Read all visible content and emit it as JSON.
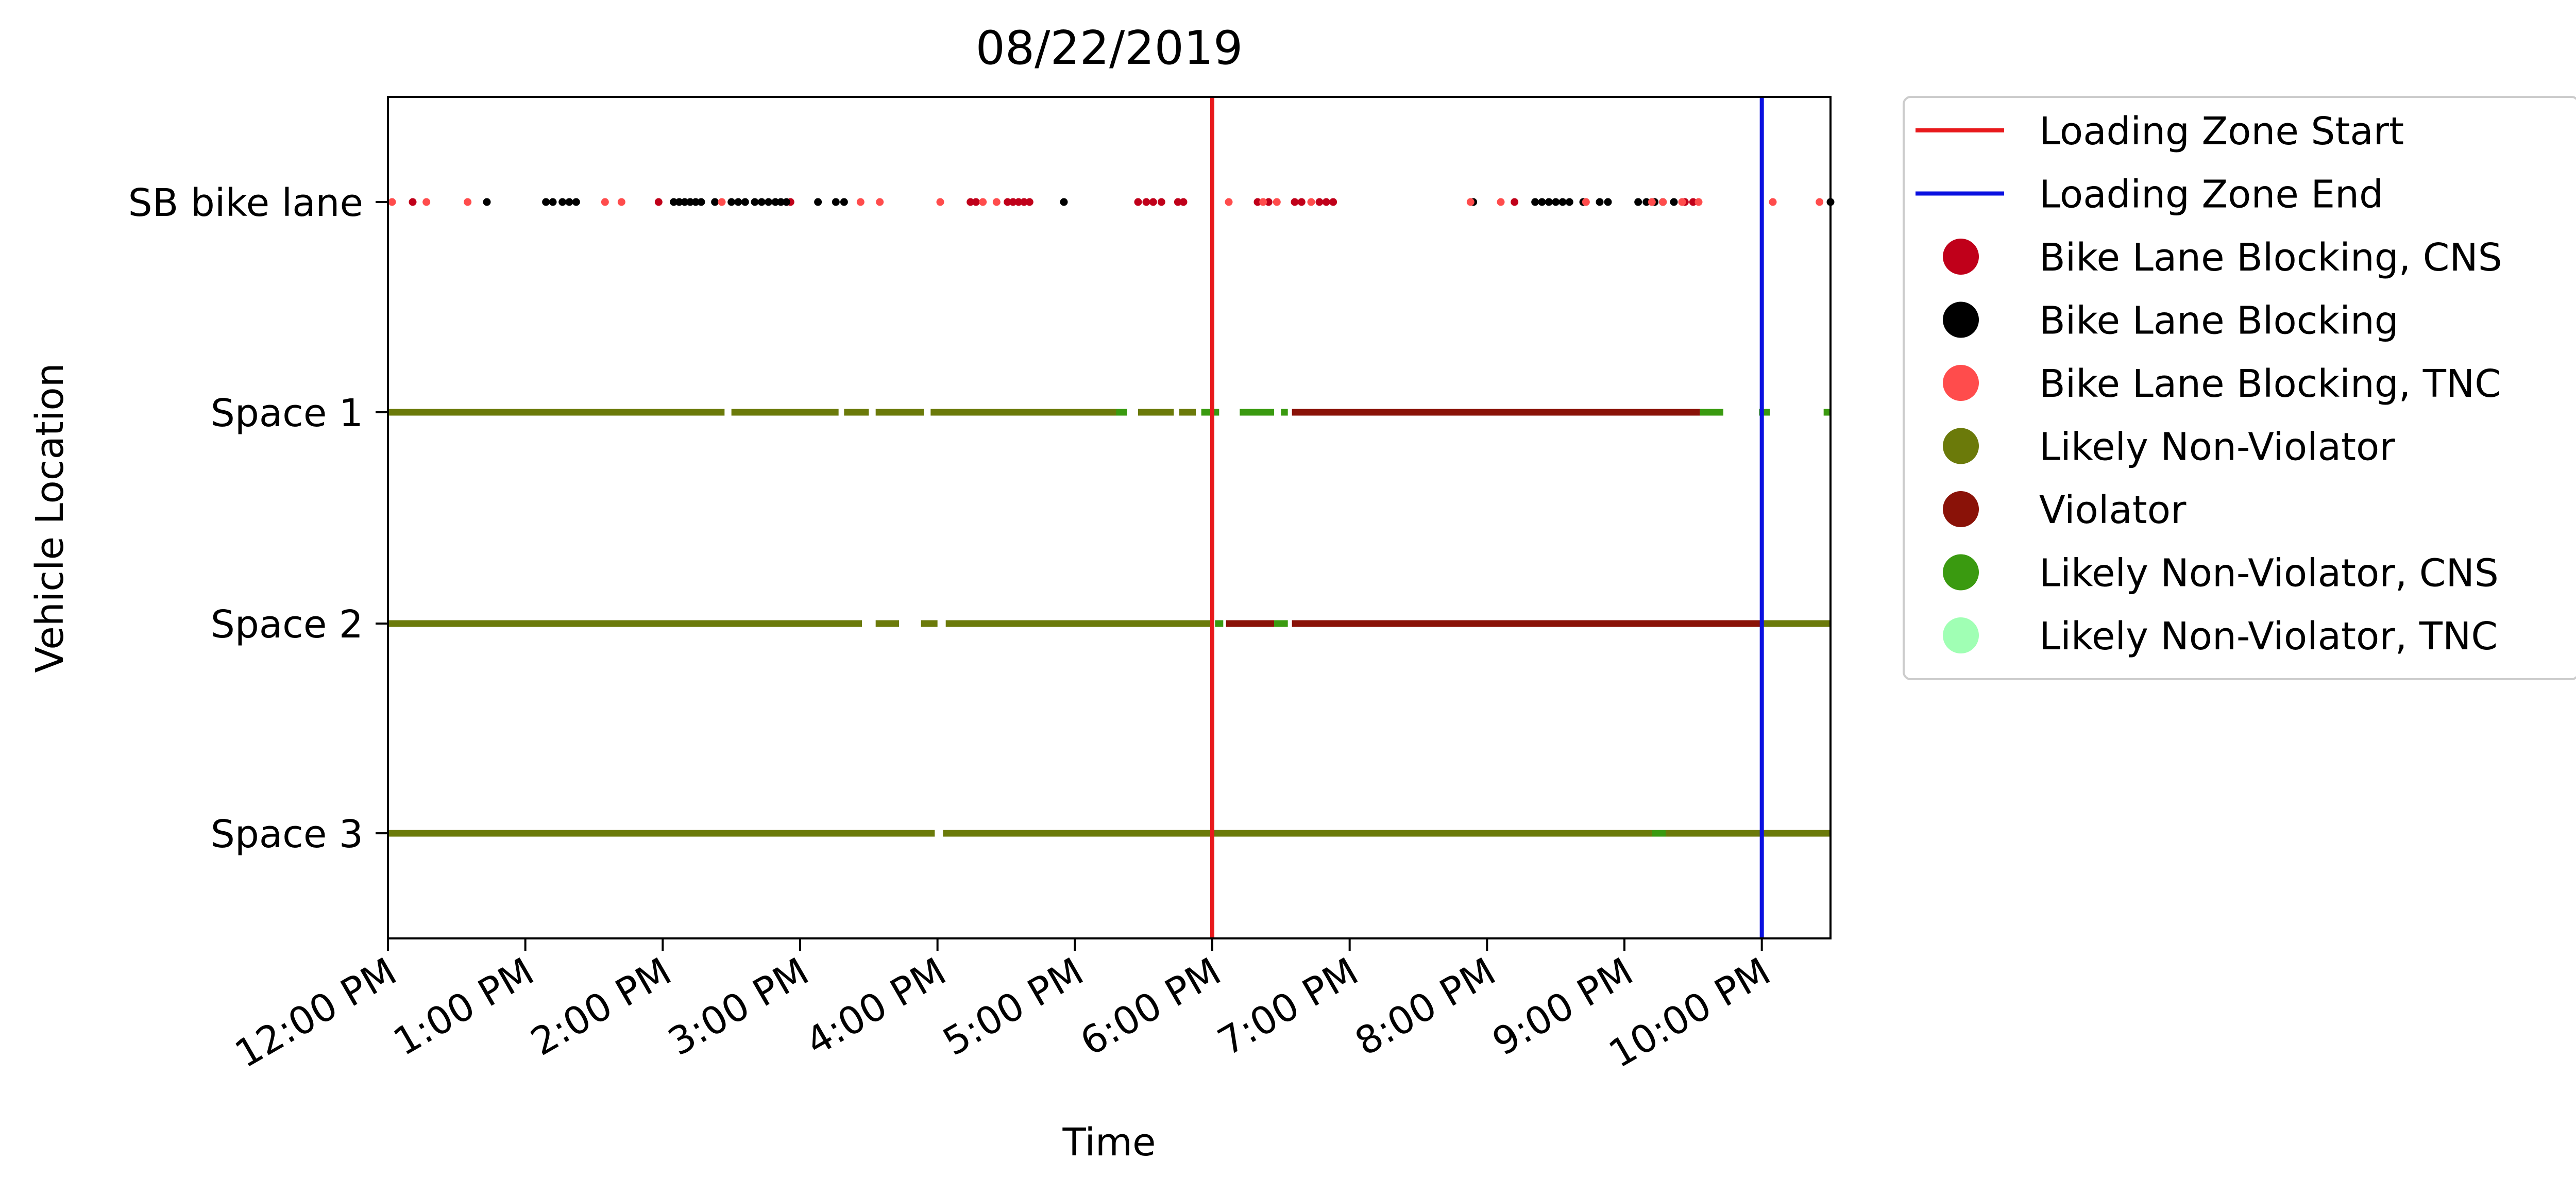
{
  "chart_data": {
    "type": "scatter",
    "title": "08/22/2019",
    "xlabel": "Time",
    "ylabel": "Vehicle Location",
    "x_unit": "time of day (hours, 24h clock)",
    "xlim": [
      12.0,
      22.5
    ],
    "x_ticks": [
      {
        "value": 12,
        "label": "12:00 PM"
      },
      {
        "value": 13,
        "label": "1:00 PM"
      },
      {
        "value": 14,
        "label": "2:00 PM"
      },
      {
        "value": 15,
        "label": "3:00 PM"
      },
      {
        "value": 16,
        "label": "4:00 PM"
      },
      {
        "value": 17,
        "label": "5:00 PM"
      },
      {
        "value": 18,
        "label": "6:00 PM"
      },
      {
        "value": 19,
        "label": "7:00 PM"
      },
      {
        "value": 20,
        "label": "8:00 PM"
      },
      {
        "value": 21,
        "label": "9:00 PM"
      },
      {
        "value": 22,
        "label": "10:00 PM"
      }
    ],
    "categories": [
      "SB bike lane",
      "Space 1",
      "Space 2",
      "Space 3"
    ],
    "legend_position": "outside right, top",
    "grid": false,
    "reference_lines": [
      {
        "name": "Loading Zone Start",
        "x": 18.0,
        "color": "#e8191c"
      },
      {
        "name": "Loading Zone End",
        "x": 22.0,
        "color": "#0a10e0"
      }
    ],
    "series": [
      {
        "name": "Bike Lane Blocking, CNS",
        "color": "#c0001a",
        "points": [
          {
            "category": "SB bike lane",
            "x": [
              12.18,
              13.97,
              14.93,
              16.24,
              16.28,
              16.51,
              16.55,
              16.59,
              16.63,
              16.67,
              17.46,
              17.52,
              17.57,
              17.63,
              17.75,
              17.79,
              18.33,
              18.41,
              18.6,
              18.65,
              18.78,
              18.83,
              18.88,
              20.2,
              21.44,
              21.5
            ]
          }
        ]
      },
      {
        "name": "Bike Lane Blocking",
        "color": "#000000",
        "points": [
          {
            "category": "SB bike lane",
            "x": [
              12.72,
              13.15,
              13.2,
              13.27,
              13.32,
              13.37,
              14.08,
              14.12,
              14.16,
              14.2,
              14.24,
              14.28,
              14.38,
              14.5,
              14.55,
              14.6,
              14.67,
              14.72,
              14.77,
              14.82,
              14.86,
              14.9,
              15.13,
              15.26,
              15.32,
              16.92,
              19.9,
              20.35,
              20.4,
              20.45,
              20.5,
              20.55,
              20.6,
              20.7,
              20.82,
              20.88,
              21.1,
              21.16,
              21.22,
              21.28,
              21.36,
              22.5
            ]
          }
        ]
      },
      {
        "name": "Bike Lane Blocking, TNC",
        "color": "#ff4c4c",
        "points": [
          {
            "category": "SB bike lane",
            "x": [
              12.03,
              12.28,
              12.58,
              13.58,
              13.7,
              14.43,
              15.44,
              15.58,
              16.02,
              16.33,
              16.43,
              18.12,
              18.37,
              18.47,
              18.72,
              19.88,
              20.1,
              20.72,
              21.2,
              21.28,
              21.42,
              21.54,
              22.08,
              22.42
            ]
          }
        ]
      },
      {
        "name": "Likely Non-Violator",
        "color": "#6b7a0a",
        "segments": [
          {
            "category": "Space 1",
            "start": 12.0,
            "end": 14.45
          },
          {
            "category": "Space 1",
            "start": 14.5,
            "end": 15.28
          },
          {
            "category": "Space 1",
            "start": 15.32,
            "end": 15.5
          },
          {
            "category": "Space 1",
            "start": 15.55,
            "end": 15.9
          },
          {
            "category": "Space 1",
            "start": 15.95,
            "end": 17.32
          },
          {
            "category": "Space 1",
            "start": 17.46,
            "end": 17.72
          },
          {
            "category": "Space 1",
            "start": 17.76,
            "end": 17.88
          },
          {
            "category": "Space 2",
            "start": 12.0,
            "end": 15.45
          },
          {
            "category": "Space 2",
            "start": 15.55,
            "end": 15.72
          },
          {
            "category": "Space 2",
            "start": 15.88,
            "end": 16.0
          },
          {
            "category": "Space 2",
            "start": 16.06,
            "end": 18.0
          },
          {
            "category": "Space 2",
            "start": 22.0,
            "end": 22.5
          },
          {
            "category": "Space 3",
            "start": 12.0,
            "end": 15.98
          },
          {
            "category": "Space 3",
            "start": 16.04,
            "end": 21.2
          },
          {
            "category": "Space 3",
            "start": 21.3,
            "end": 22.5
          }
        ]
      },
      {
        "name": "Violator",
        "color": "#8a1208",
        "segments": [
          {
            "category": "Space 1",
            "start": 18.58,
            "end": 21.55
          },
          {
            "category": "Space 2",
            "start": 18.1,
            "end": 18.45
          },
          {
            "category": "Space 2",
            "start": 18.58,
            "end": 22.0
          }
        ]
      },
      {
        "name": "Likely Non-Violator, CNS",
        "color": "#3a9a10",
        "segments": [
          {
            "category": "Space 1",
            "start": 17.3,
            "end": 17.38
          },
          {
            "category": "Space 1",
            "start": 17.92,
            "end": 18.05
          },
          {
            "category": "Space 1",
            "start": 18.2,
            "end": 18.45
          },
          {
            "category": "Space 1",
            "start": 18.5,
            "end": 18.55
          },
          {
            "category": "Space 1",
            "start": 21.55,
            "end": 21.72
          },
          {
            "category": "Space 1",
            "start": 21.98,
            "end": 22.06
          },
          {
            "category": "Space 1",
            "start": 22.45,
            "end": 22.5
          },
          {
            "category": "Space 2",
            "start": 18.02,
            "end": 18.08
          },
          {
            "category": "Space 2",
            "start": 18.45,
            "end": 18.55
          },
          {
            "category": "Space 3",
            "start": 21.2,
            "end": 21.3
          }
        ]
      },
      {
        "name": "Likely Non-Violator, TNC",
        "color": "#a0ffb4",
        "segments": []
      }
    ]
  }
}
